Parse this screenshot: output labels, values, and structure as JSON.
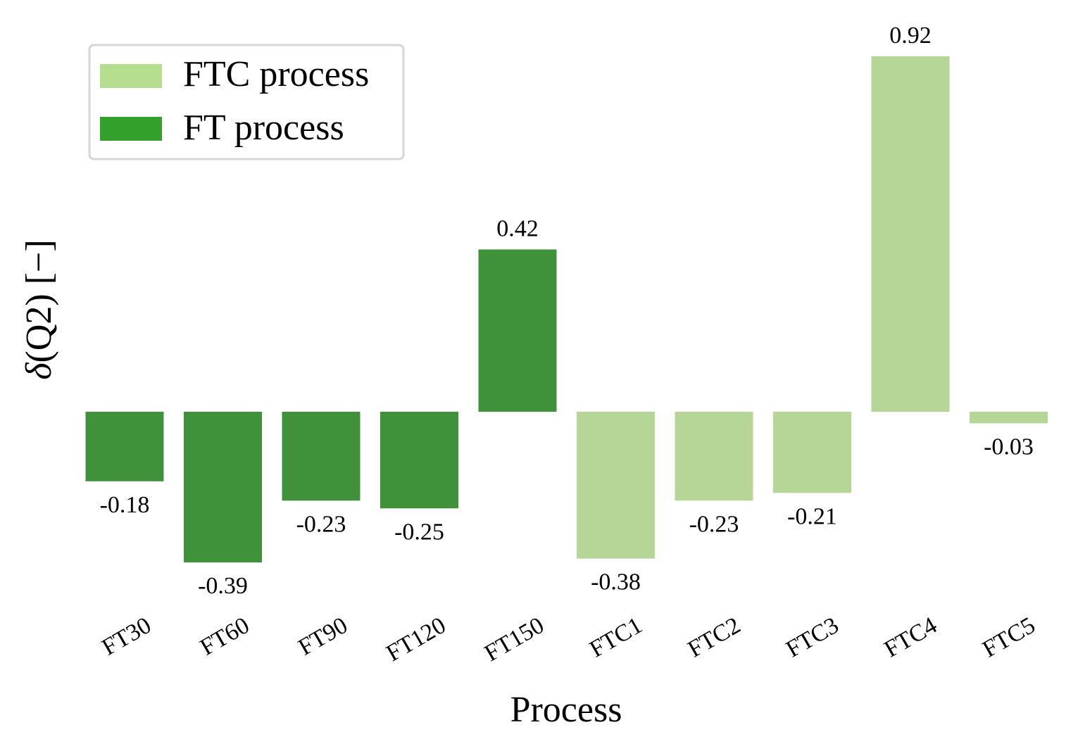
{
  "chart_data": {
    "type": "bar",
    "title": "",
    "xlabel": "Process",
    "ylabel": "δ(Q2) [−]",
    "ylabel_parts": {
      "symbol": "δ",
      "rest": "(Q2) [−]"
    },
    "categories": [
      "FT30",
      "FT60",
      "FT90",
      "FT120",
      "FT150",
      "FTC1",
      "FTC2",
      "FTC3",
      "FTC4",
      "FTC5"
    ],
    "values": [
      -0.18,
      -0.39,
      -0.23,
      -0.25,
      0.42,
      -0.38,
      -0.23,
      -0.21,
      0.92,
      -0.03
    ],
    "value_labels": [
      "-0.18",
      "-0.39",
      "-0.23",
      "-0.25",
      "0.42",
      "-0.38",
      "-0.23",
      "-0.21",
      "0.92",
      "-0.03"
    ],
    "groups": [
      "FT process",
      "FT process",
      "FT process",
      "FT process",
      "FT process",
      "FTC process",
      "FTC process",
      "FTC process",
      "FTC process",
      "FTC process"
    ],
    "ylim": [
      -0.5,
      0.95
    ],
    "grid": false,
    "tick_rotation_deg": -30,
    "legend": {
      "placement": "top-left",
      "entries": [
        {
          "name": "FTC process",
          "color": "#b5df8f"
        },
        {
          "name": "FT process",
          "color": "#33a02c"
        }
      ]
    },
    "bar_colors": {
      "FT process": "#3f923a",
      "FTC process": "#b6d697"
    }
  }
}
